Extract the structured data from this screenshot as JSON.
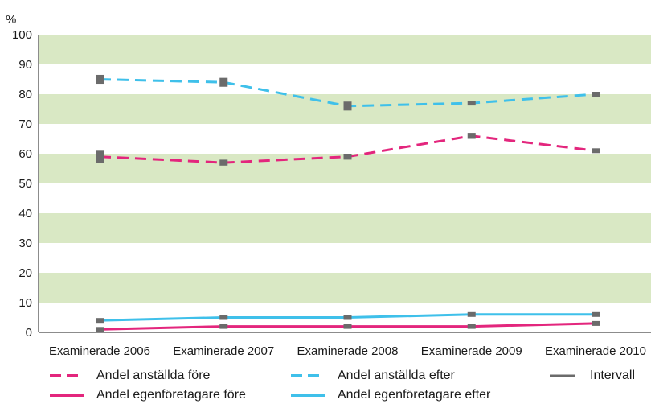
{
  "chart_data": {
    "type": "line",
    "ylabel": "%",
    "ylim": [
      0,
      100
    ],
    "yticks": [
      0,
      10,
      20,
      30,
      40,
      50,
      60,
      70,
      80,
      90,
      100
    ],
    "categories": [
      "Examinerade 2006",
      "Examinerade 2007",
      "Examinerade 2008",
      "Examinerade 2009",
      "Examinerade 2010"
    ],
    "grid": "alternating horizontal bands",
    "band_color": "#d9e8c4",
    "series": [
      {
        "name": "Andel anställda före",
        "color": "#e3267d",
        "dash": true,
        "values": [
          59,
          57,
          59,
          66,
          61
        ],
        "interval": [
          [
            57,
            61
          ],
          [
            56,
            58
          ],
          [
            58,
            60
          ],
          [
            65,
            67
          ],
          [
            60.5,
            61.5
          ]
        ]
      },
      {
        "name": "Andel egenföretagare före",
        "color": "#e3267d",
        "dash": false,
        "values": [
          1,
          2,
          2,
          2,
          3
        ],
        "interval": [
          [
            0.5,
            1.5
          ],
          [
            1.5,
            2.5
          ],
          [
            1.5,
            2.5
          ],
          [
            1.5,
            2.5
          ],
          null
        ]
      },
      {
        "name": "Andel anställda efter",
        "color": "#3fc0ea",
        "dash": true,
        "values": [
          85,
          84,
          76,
          77,
          80
        ],
        "interval": [
          [
            83.5,
            86.5
          ],
          [
            82.5,
            85.5
          ],
          [
            74.5,
            77.5
          ],
          [
            76.5,
            77.5
          ],
          [
            79.5,
            80.5
          ]
        ]
      },
      {
        "name": "Andel egenföretagare efter",
        "color": "#3fc0ea",
        "dash": false,
        "values": [
          4,
          5,
          5,
          6,
          6
        ],
        "interval": [
          [
            3.5,
            4.5
          ],
          [
            4.5,
            5.5
          ],
          [
            4.5,
            5.5
          ],
          [
            5.5,
            6.5
          ],
          null
        ]
      }
    ],
    "legend": {
      "position": "bottom",
      "interval_label": "Intervall",
      "interval_color": "#6b6b6b"
    }
  }
}
